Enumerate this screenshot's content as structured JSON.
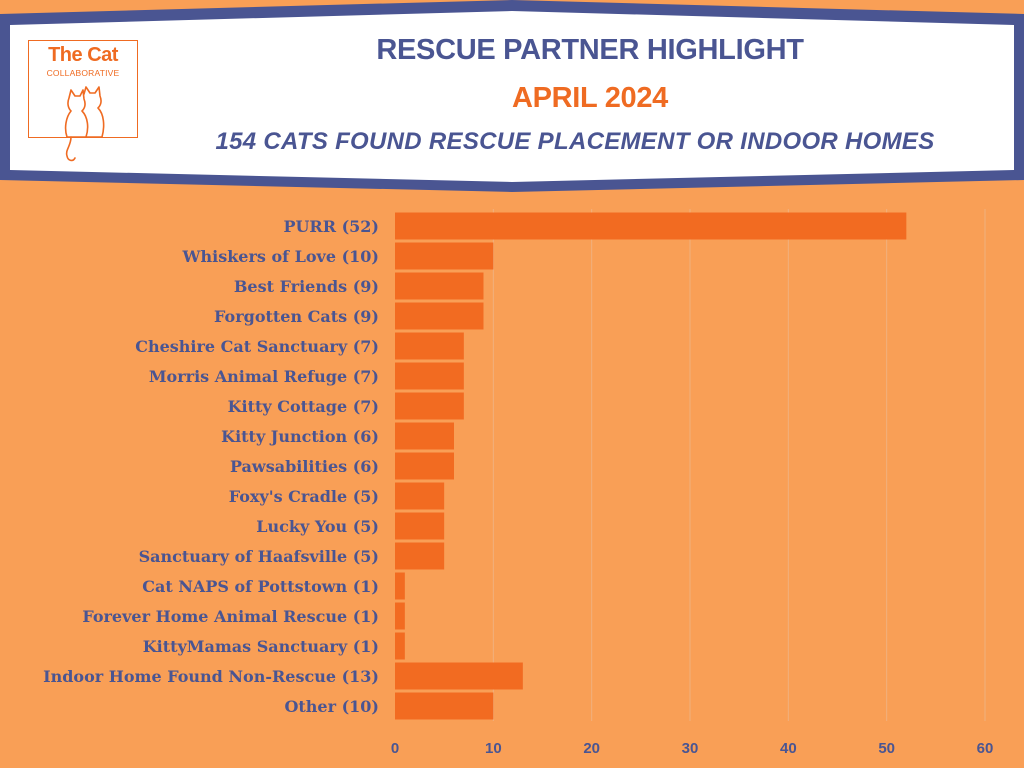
{
  "header": {
    "title": "RESCUE PARTNER HIGHLIGHT",
    "subtitle": "APRIL 2024",
    "tagline": "154 CATS FOUND RESCUE PLACEMENT OR INDOOR HOMES"
  },
  "logo": {
    "name": "The Cat",
    "sub": "COLLABORATIVE",
    "icon": "two-cats-icon"
  },
  "colors": {
    "background": "#f99f56",
    "bar": "#f26b21",
    "navy": "#4a5592",
    "brand_orange": "#ef6b22",
    "grid": "#f0b07e"
  },
  "chart_data": {
    "type": "bar",
    "orientation": "horizontal",
    "categories": [
      "PURR (52)",
      "Whiskers of Love (10)",
      "Best Friends (9)",
      "Forgotten Cats (9)",
      "Cheshire Cat Sanctuary (7)",
      "Morris Animal Refuge (7)",
      "Kitty Cottage (7)",
      "Kitty Junction (6)",
      "Pawsabilities (6)",
      "Foxy's Cradle (5)",
      "Lucky You (5)",
      "Sanctuary of Haafsville (5)",
      "Cat NAPS of Pottstown (1)",
      "Forever Home Animal Rescue (1)",
      "KittyMamas Sanctuary (1)",
      "Indoor Home Found Non-Rescue (13)",
      "Other (10)"
    ],
    "values": [
      52,
      10,
      9,
      9,
      7,
      7,
      7,
      6,
      6,
      5,
      5,
      5,
      1,
      1,
      1,
      13,
      10
    ],
    "xlim": [
      0,
      60
    ],
    "xticks": [
      0,
      10,
      20,
      30,
      40,
      50,
      60
    ],
    "grid": "vertical",
    "legend": "none"
  }
}
